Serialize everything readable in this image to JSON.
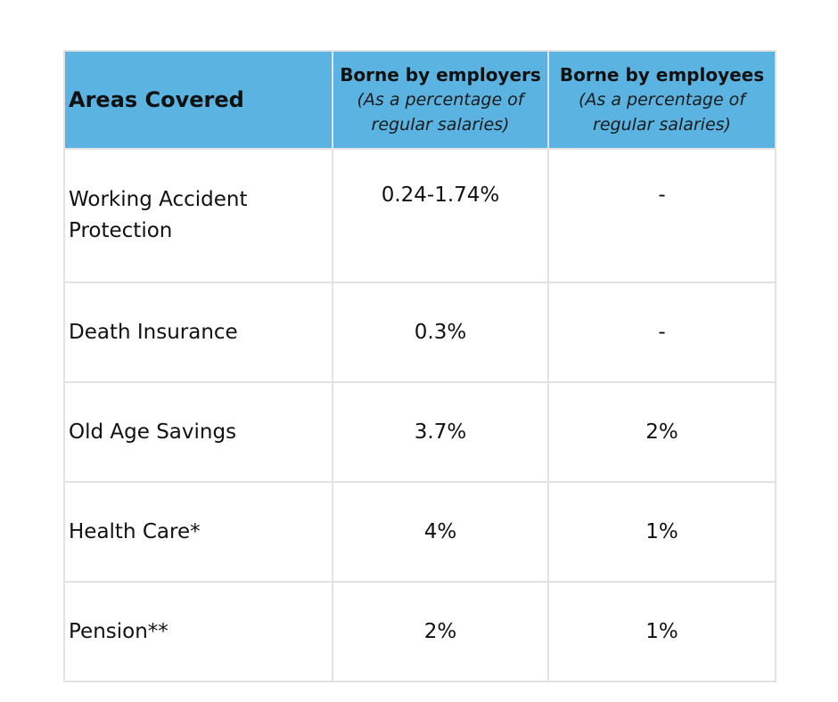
{
  "table": {
    "headers": {
      "area": "Areas Covered",
      "employers": {
        "title": "Borne by employers",
        "subtitle": "(As a percentage of regular salaries)"
      },
      "employees": {
        "title": "Borne by employees",
        "subtitle": "(As a percentage of regular salaries)"
      }
    },
    "rows": [
      {
        "area": "Working Accident Protection",
        "employers": "0.24-1.74%",
        "employees": "-"
      },
      {
        "area": "Death Insurance",
        "employers": "0.3%",
        "employees": "-"
      },
      {
        "area": "Old Age Savings",
        "employers": "3.7%",
        "employees": "2%"
      },
      {
        "area": "Health Care*",
        "employers": "4%",
        "employees": "1%"
      },
      {
        "area": "Pension**",
        "employers": "2%",
        "employees": "1%"
      }
    ],
    "colors": {
      "header_background": "#5ab3e0",
      "border": "#e2e2e2"
    }
  }
}
